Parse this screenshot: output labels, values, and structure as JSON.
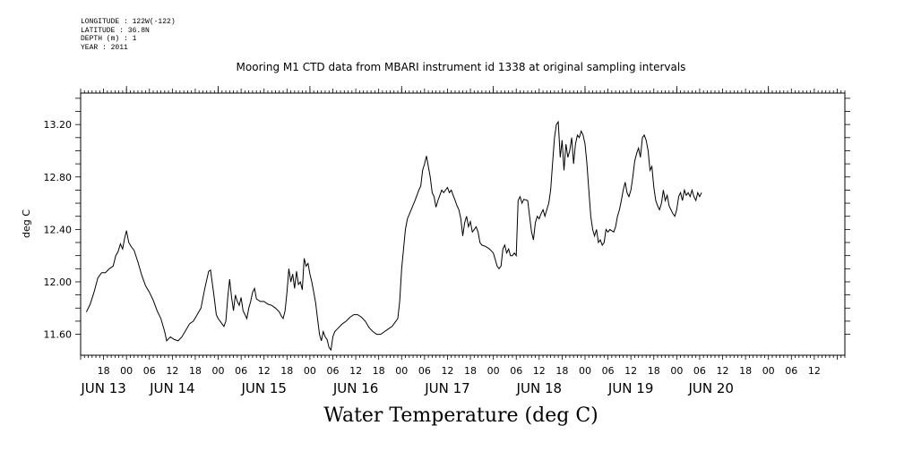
{
  "meta": {
    "longitude": "LONGITUDE : 122W(-122)",
    "latitude": "LATITUDE : 36.8N",
    "depth": "DEPTH (m) : 1",
    "year": "YEAR : 2011"
  },
  "chart_data": {
    "type": "line",
    "title": "Mooring M1 CTD data from MBARI instrument id 1338 at original sampling intervals",
    "xlabel": "Water Temperature (deg C)",
    "ylabel": "deg C",
    "x_unit": "hours since 2011-06-13 00:00",
    "xlim": [
      -12,
      188
    ],
    "ylim": [
      11.44,
      13.44
    ],
    "y_ticks": [
      11.6,
      12.0,
      12.4,
      12.8,
      13.2
    ],
    "y_tick_labels": [
      "11.60",
      "12.00",
      "12.40",
      "12.80",
      "13.20"
    ],
    "hour_ticks": [
      {
        "x": -6,
        "label": "18"
      },
      {
        "x": 0,
        "label": "00"
      },
      {
        "x": 6,
        "label": "06"
      },
      {
        "x": 12,
        "label": "12"
      },
      {
        "x": 18,
        "label": "18"
      },
      {
        "x": 24,
        "label": "00"
      },
      {
        "x": 30,
        "label": "06"
      },
      {
        "x": 36,
        "label": "12"
      },
      {
        "x": 42,
        "label": "18"
      },
      {
        "x": 48,
        "label": "00"
      },
      {
        "x": 54,
        "label": "06"
      },
      {
        "x": 60,
        "label": "12"
      },
      {
        "x": 66,
        "label": "18"
      },
      {
        "x": 72,
        "label": "00"
      },
      {
        "x": 78,
        "label": "06"
      },
      {
        "x": 84,
        "label": "12"
      },
      {
        "x": 90,
        "label": "18"
      },
      {
        "x": 96,
        "label": "00"
      },
      {
        "x": 102,
        "label": "06"
      },
      {
        "x": 108,
        "label": "12"
      },
      {
        "x": 114,
        "label": "18"
      },
      {
        "x": 120,
        "label": "00"
      },
      {
        "x": 126,
        "label": "06"
      },
      {
        "x": 132,
        "label": "12"
      },
      {
        "x": 138,
        "label": "18"
      },
      {
        "x": 144,
        "label": "00"
      },
      {
        "x": 150,
        "label": "06"
      },
      {
        "x": 156,
        "label": "12"
      },
      {
        "x": 162,
        "label": "18"
      },
      {
        "x": 168,
        "label": "00"
      },
      {
        "x": 174,
        "label": "06"
      },
      {
        "x": 180,
        "label": "12"
      }
    ],
    "day_labels": [
      {
        "x": -6,
        "label": "JUN 13"
      },
      {
        "x": 12,
        "label": "JUN 14"
      },
      {
        "x": 36,
        "label": "JUN 15"
      },
      {
        "x": 60,
        "label": "JUN 16"
      },
      {
        "x": 84,
        "label": "JUN 17"
      },
      {
        "x": 108,
        "label": "JUN 18"
      },
      {
        "x": 132,
        "label": "JUN 19"
      },
      {
        "x": 153,
        "label": "JUN 20"
      }
    ],
    "series": [
      {
        "points": [
          [
            -10.5,
            11.77
          ],
          [
            -9.5,
            11.83
          ],
          [
            -8.5,
            11.92
          ],
          [
            -7.5,
            12.03
          ],
          [
            -6.5,
            12.07
          ],
          [
            -5.5,
            12.07
          ],
          [
            -4.5,
            12.1
          ],
          [
            -3.5,
            12.12
          ],
          [
            -2.8,
            12.2
          ],
          [
            -2.2,
            12.23
          ],
          [
            -1.6,
            12.29
          ],
          [
            -1.0,
            12.25
          ],
          [
            -0.5,
            12.33
          ],
          [
            0.0,
            12.39
          ],
          [
            0.6,
            12.3
          ],
          [
            1.2,
            12.27
          ],
          [
            2.0,
            12.24
          ],
          [
            3.0,
            12.15
          ],
          [
            4.0,
            12.05
          ],
          [
            5.0,
            11.97
          ],
          [
            6.0,
            11.92
          ],
          [
            7.0,
            11.86
          ],
          [
            8.0,
            11.78
          ],
          [
            9.0,
            11.72
          ],
          [
            10.0,
            11.62
          ],
          [
            10.5,
            11.55
          ],
          [
            11.5,
            11.58
          ],
          [
            12.5,
            11.56
          ],
          [
            13.5,
            11.55
          ],
          [
            14.5,
            11.58
          ],
          [
            15.5,
            11.63
          ],
          [
            16.5,
            11.68
          ],
          [
            17.5,
            11.7
          ],
          [
            18.5,
            11.75
          ],
          [
            19.5,
            11.8
          ],
          [
            20.5,
            11.95
          ],
          [
            21.5,
            12.08
          ],
          [
            22.0,
            12.09
          ],
          [
            23.0,
            11.87
          ],
          [
            23.5,
            11.75
          ],
          [
            24.0,
            11.72
          ],
          [
            24.5,
            11.7
          ],
          [
            25.5,
            11.66
          ],
          [
            26.0,
            11.7
          ],
          [
            26.5,
            11.88
          ],
          [
            27.0,
            12.02
          ],
          [
            27.5,
            11.88
          ],
          [
            28.0,
            11.78
          ],
          [
            28.5,
            11.9
          ],
          [
            29.0,
            11.85
          ],
          [
            29.5,
            11.82
          ],
          [
            30.0,
            11.88
          ],
          [
            30.5,
            11.78
          ],
          [
            31.0,
            11.75
          ],
          [
            31.5,
            11.72
          ],
          [
            32.0,
            11.8
          ],
          [
            32.5,
            11.85
          ],
          [
            33.0,
            11.92
          ],
          [
            33.5,
            11.95
          ],
          [
            34.0,
            11.87
          ],
          [
            35.0,
            11.85
          ],
          [
            36.0,
            11.85
          ],
          [
            37.0,
            11.83
          ],
          [
            38.0,
            11.82
          ],
          [
            39.0,
            11.8
          ],
          [
            40.0,
            11.77
          ],
          [
            40.5,
            11.74
          ],
          [
            41.0,
            11.72
          ],
          [
            41.5,
            11.78
          ],
          [
            42.0,
            11.92
          ],
          [
            42.5,
            12.1
          ],
          [
            43.0,
            12.0
          ],
          [
            43.5,
            12.06
          ],
          [
            44.0,
            11.95
          ],
          [
            44.5,
            12.08
          ],
          [
            45.0,
            11.98
          ],
          [
            45.5,
            12.0
          ],
          [
            46.0,
            11.94
          ],
          [
            46.5,
            12.18
          ],
          [
            47.0,
            12.12
          ],
          [
            47.5,
            12.14
          ],
          [
            48.0,
            12.06
          ],
          [
            48.5,
            12.0
          ],
          [
            49.0,
            11.92
          ],
          [
            49.5,
            11.84
          ],
          [
            50.0,
            11.72
          ],
          [
            50.5,
            11.6
          ],
          [
            51.0,
            11.55
          ],
          [
            51.5,
            11.62
          ],
          [
            52.0,
            11.58
          ],
          [
            52.5,
            11.56
          ],
          [
            53.0,
            11.5
          ],
          [
            53.5,
            11.48
          ],
          [
            54.0,
            11.58
          ],
          [
            54.5,
            11.62
          ],
          [
            55.5,
            11.65
          ],
          [
            56.5,
            11.68
          ],
          [
            57.5,
            11.7
          ],
          [
            58.5,
            11.73
          ],
          [
            59.5,
            11.75
          ],
          [
            60.5,
            11.75
          ],
          [
            61.5,
            11.73
          ],
          [
            62.5,
            11.7
          ],
          [
            63.5,
            11.65
          ],
          [
            64.5,
            11.62
          ],
          [
            65.5,
            11.6
          ],
          [
            66.5,
            11.6
          ],
          [
            67.5,
            11.62
          ],
          [
            68.5,
            11.64
          ],
          [
            69.5,
            11.66
          ],
          [
            70.5,
            11.7
          ],
          [
            71.0,
            11.72
          ],
          [
            71.5,
            11.85
          ],
          [
            72.0,
            12.1
          ],
          [
            72.5,
            12.25
          ],
          [
            73.0,
            12.4
          ],
          [
            73.5,
            12.48
          ],
          [
            74.5,
            12.55
          ],
          [
            75.5,
            12.62
          ],
          [
            76.5,
            12.7
          ],
          [
            77.0,
            12.73
          ],
          [
            77.5,
            12.85
          ],
          [
            78.0,
            12.9
          ],
          [
            78.5,
            12.96
          ],
          [
            79.0,
            12.88
          ],
          [
            79.5,
            12.8
          ],
          [
            80.0,
            12.68
          ],
          [
            80.5,
            12.65
          ],
          [
            81.0,
            12.57
          ],
          [
            81.5,
            12.62
          ],
          [
            82.0,
            12.66
          ],
          [
            82.5,
            12.7
          ],
          [
            83.0,
            12.68
          ],
          [
            84.0,
            12.72
          ],
          [
            84.5,
            12.68
          ],
          [
            85.0,
            12.7
          ],
          [
            85.5,
            12.66
          ],
          [
            86.0,
            12.62
          ],
          [
            86.5,
            12.58
          ],
          [
            87.0,
            12.55
          ],
          [
            87.5,
            12.48
          ],
          [
            88.0,
            12.35
          ],
          [
            88.5,
            12.45
          ],
          [
            89.0,
            12.5
          ],
          [
            89.5,
            12.42
          ],
          [
            90.0,
            12.46
          ],
          [
            90.5,
            12.38
          ],
          [
            91.0,
            12.4
          ],
          [
            91.5,
            12.42
          ],
          [
            92.0,
            12.38
          ],
          [
            92.5,
            12.3
          ],
          [
            93.0,
            12.28
          ],
          [
            94.0,
            12.27
          ],
          [
            95.0,
            12.25
          ],
          [
            96.0,
            12.22
          ],
          [
            96.5,
            12.17
          ],
          [
            97.0,
            12.12
          ],
          [
            97.5,
            12.1
          ],
          [
            98.0,
            12.12
          ],
          [
            98.5,
            12.25
          ],
          [
            99.0,
            12.28
          ],
          [
            99.5,
            12.22
          ],
          [
            100.0,
            12.25
          ],
          [
            100.5,
            12.2
          ],
          [
            101.0,
            12.2
          ],
          [
            101.5,
            12.22
          ],
          [
            102.0,
            12.2
          ],
          [
            102.5,
            12.62
          ],
          [
            103.0,
            12.65
          ],
          [
            103.5,
            12.6
          ],
          [
            104.0,
            12.63
          ],
          [
            105.0,
            12.62
          ],
          [
            105.5,
            12.5
          ],
          [
            106.0,
            12.38
          ],
          [
            106.5,
            12.32
          ],
          [
            107.0,
            12.45
          ],
          [
            107.5,
            12.5
          ],
          [
            108.0,
            12.48
          ],
          [
            108.5,
            12.52
          ],
          [
            109.0,
            12.55
          ],
          [
            109.5,
            12.5
          ],
          [
            110.0,
            12.55
          ],
          [
            110.5,
            12.6
          ],
          [
            111.0,
            12.7
          ],
          [
            111.5,
            12.9
          ],
          [
            112.0,
            13.1
          ],
          [
            112.5,
            13.2
          ],
          [
            113.0,
            13.22
          ],
          [
            113.5,
            12.95
          ],
          [
            114.0,
            13.08
          ],
          [
            114.5,
            12.85
          ],
          [
            115.0,
            13.05
          ],
          [
            115.5,
            12.95
          ],
          [
            116.0,
            13.0
          ],
          [
            116.5,
            13.1
          ],
          [
            117.0,
            12.9
          ],
          [
            117.5,
            13.05
          ],
          [
            118.0,
            13.12
          ],
          [
            118.5,
            13.1
          ],
          [
            119.0,
            13.15
          ],
          [
            119.5,
            13.12
          ],
          [
            120.0,
            13.05
          ],
          [
            120.5,
            12.9
          ],
          [
            121.0,
            12.7
          ],
          [
            121.5,
            12.5
          ],
          [
            122.0,
            12.4
          ],
          [
            122.5,
            12.35
          ],
          [
            123.0,
            12.4
          ],
          [
            123.5,
            12.3
          ],
          [
            124.0,
            12.32
          ],
          [
            124.5,
            12.28
          ],
          [
            125.0,
            12.3
          ],
          [
            125.5,
            12.4
          ],
          [
            126.0,
            12.38
          ],
          [
            126.5,
            12.4
          ],
          [
            127.5,
            12.38
          ],
          [
            128.0,
            12.42
          ],
          [
            128.5,
            12.5
          ],
          [
            129.0,
            12.55
          ],
          [
            129.5,
            12.62
          ],
          [
            130.0,
            12.7
          ],
          [
            130.5,
            12.76
          ],
          [
            131.0,
            12.68
          ],
          [
            131.5,
            12.65
          ],
          [
            132.0,
            12.7
          ],
          [
            132.5,
            12.8
          ],
          [
            133.0,
            12.92
          ],
          [
            133.5,
            12.98
          ],
          [
            134.0,
            13.02
          ],
          [
            134.5,
            12.95
          ],
          [
            135.0,
            13.1
          ],
          [
            135.5,
            13.12
          ],
          [
            136.0,
            13.08
          ],
          [
            136.5,
            13.0
          ],
          [
            137.0,
            12.85
          ],
          [
            137.5,
            12.88
          ],
          [
            138.0,
            12.72
          ],
          [
            138.5,
            12.62
          ],
          [
            139.0,
            12.58
          ],
          [
            139.5,
            12.55
          ],
          [
            140.0,
            12.6
          ],
          [
            140.5,
            12.7
          ],
          [
            141.0,
            12.62
          ],
          [
            141.5,
            12.66
          ],
          [
            142.0,
            12.58
          ],
          [
            142.5,
            12.55
          ],
          [
            143.0,
            12.52
          ],
          [
            143.5,
            12.5
          ],
          [
            144.0,
            12.55
          ],
          [
            144.5,
            12.65
          ],
          [
            145.0,
            12.68
          ],
          [
            145.5,
            12.62
          ],
          [
            146.0,
            12.7
          ],
          [
            146.5,
            12.66
          ],
          [
            147.0,
            12.68
          ],
          [
            147.5,
            12.65
          ],
          [
            148.0,
            12.7
          ],
          [
            148.5,
            12.65
          ],
          [
            149.0,
            12.62
          ],
          [
            149.5,
            12.68
          ],
          [
            150.0,
            12.65
          ],
          [
            150.5,
            12.68
          ]
        ]
      }
    ]
  }
}
